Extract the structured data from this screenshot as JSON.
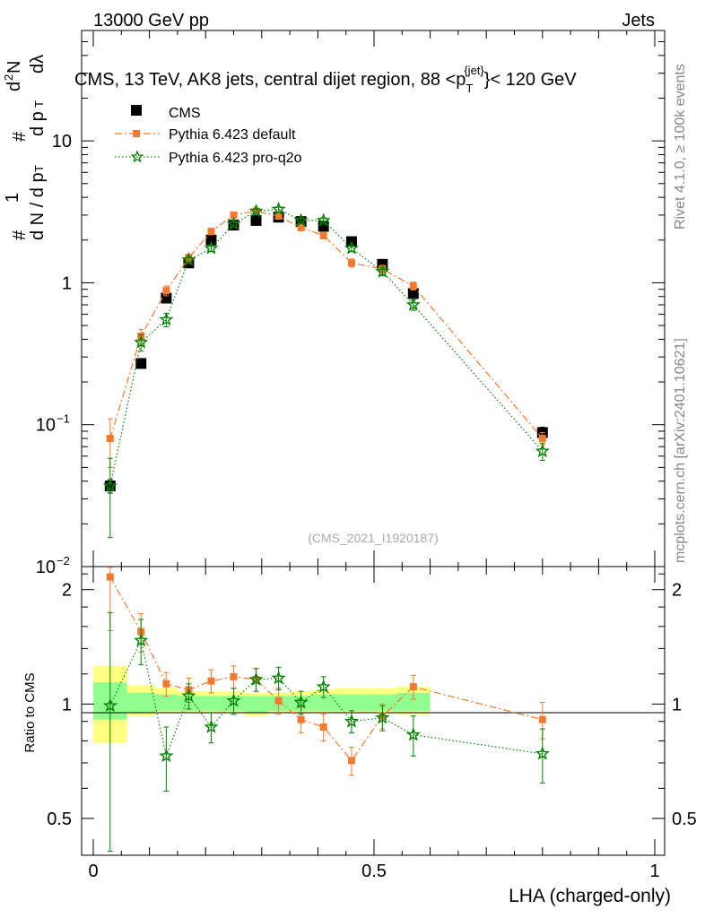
{
  "header": {
    "left": "13000 GeV pp",
    "right": "Jets"
  },
  "side_labels": {
    "rivet": "Rivet 4.1.0, ≥ 100k events",
    "mcplots": "mcplots.cern.ch [arXiv:2401.10621]"
  },
  "colors": {
    "cms": "#000000",
    "default": "#f47a30",
    "proq2o": "#008000",
    "band_outer": "#ffff80",
    "band_inner": "#90ff90"
  },
  "chart_data": {
    "type": "scatter",
    "title": "CMS, 13 TeV, AK8 jets, central dijet region, 88 <p",
    "title_sup": "{jet}",
    "title_sub": "T",
    "title_end": "}< 120 GeV",
    "watermark": "(CMS_2021_I1920187)",
    "xlabel": "LHA (charged-only)",
    "ylabel_main": "1/dN/dpT  d²N/dpT dλ",
    "ylabel_ratio": "Ratio to CMS",
    "xlim": [
      0,
      1
    ],
    "ylim_main": [
      0.01,
      60
    ],
    "ylim_ratio": [
      0.4,
      2.3
    ],
    "x_ticks": [
      0,
      0.5,
      1
    ],
    "x_tick_labels": [
      "0",
      "0.5",
      "1"
    ],
    "main_ticks": {
      "values": [
        0.01,
        0.1,
        1,
        10
      ],
      "labels": [
        {
          "base": "10",
          "exp": "−2"
        },
        {
          "base": "10",
          "exp": "−1"
        },
        {
          "base": "1",
          "exp": ""
        },
        {
          "base": "10",
          "exp": ""
        }
      ]
    },
    "ratio_ticks": {
      "values": [
        0.5,
        1,
        2
      ],
      "labels": [
        "0.5",
        "1",
        "2"
      ]
    },
    "bin_edges": [
      0,
      0.06,
      0.11,
      0.15,
      0.19,
      0.23,
      0.27,
      0.31,
      0.35,
      0.39,
      0.43,
      0.49,
      0.54,
      0.6,
      1.0
    ],
    "x_centers": [
      0.03,
      0.085,
      0.13,
      0.17,
      0.21,
      0.25,
      0.29,
      0.33,
      0.37,
      0.41,
      0.46,
      0.515,
      0.57,
      0.8
    ],
    "series": [
      {
        "name": "CMS",
        "marker": "square",
        "values": [
          0.037,
          0.27,
          0.78,
          1.38,
          2.0,
          2.55,
          2.75,
          2.9,
          2.7,
          2.5,
          1.95,
          1.35,
          0.84,
          0.088
        ],
        "errors": [
          0.004,
          0.02,
          0.05,
          0.07,
          0.08,
          0.09,
          0.09,
          0.09,
          0.09,
          0.09,
          0.08,
          0.07,
          0.05,
          0.008
        ]
      },
      {
        "name": "Pythia 6.423 default",
        "marker": "circle-square",
        "line": "dashdot",
        "values": [
          0.08,
          0.42,
          0.88,
          1.5,
          2.3,
          3.0,
          3.2,
          2.95,
          2.45,
          2.15,
          1.38,
          1.25,
          0.95,
          0.08
        ],
        "errors": [
          0.03,
          0.05,
          0.07,
          0.09,
          0.12,
          0.13,
          0.13,
          0.13,
          0.12,
          0.11,
          0.09,
          0.08,
          0.06,
          0.008
        ],
        "ratio": [
          2.16,
          1.55,
          1.13,
          1.09,
          1.15,
          1.18,
          1.16,
          1.02,
          0.91,
          0.87,
          0.71,
          0.93,
          1.11,
          0.91
        ],
        "ratio_err": [
          0.6,
          0.18,
          0.08,
          0.08,
          0.08,
          0.08,
          0.08,
          0.08,
          0.07,
          0.07,
          0.06,
          0.07,
          0.08,
          0.1
        ]
      },
      {
        "name": "Pythia 6.423 pro-q2o",
        "marker": "star",
        "line": "dotted",
        "values": [
          0.037,
          0.38,
          0.55,
          1.45,
          1.75,
          2.6,
          3.2,
          3.3,
          2.75,
          2.75,
          1.75,
          1.2,
          0.7,
          0.065
        ],
        "errors": [
          0.021,
          0.05,
          0.06,
          0.08,
          0.09,
          0.12,
          0.13,
          0.13,
          0.12,
          0.12,
          0.09,
          0.08,
          0.06,
          0.009
        ],
        "ratio": [
          0.99,
          1.47,
          0.73,
          1.05,
          0.87,
          1.02,
          1.16,
          1.17,
          1.01,
          1.11,
          0.9,
          0.92,
          0.83,
          0.74
        ],
        "ratio_err": [
          0.75,
          0.2,
          0.14,
          0.08,
          0.08,
          0.08,
          0.08,
          0.08,
          0.07,
          0.07,
          0.06,
          0.07,
          0.1,
          0.12
        ]
      }
    ],
    "band_yellow": [
      [
        0.79,
        1.26
      ],
      [
        0.93,
        1.12
      ],
      [
        0.95,
        1.1
      ],
      [
        0.95,
        1.08
      ],
      [
        0.95,
        1.08
      ],
      [
        0.95,
        1.08
      ],
      [
        0.93,
        1.07
      ],
      [
        0.95,
        1.07
      ],
      [
        0.95,
        1.08
      ],
      [
        0.95,
        1.09
      ],
      [
        0.95,
        1.1
      ],
      [
        0.95,
        1.1
      ],
      [
        0.94,
        1.11
      ]
    ],
    "band_green": [
      [
        0.91,
        1.14
      ],
      [
        0.95,
        1.07
      ],
      [
        0.96,
        1.06
      ],
      [
        0.96,
        1.05
      ],
      [
        0.96,
        1.05
      ],
      [
        0.96,
        1.05
      ],
      [
        0.95,
        1.05
      ],
      [
        0.96,
        1.05
      ],
      [
        0.96,
        1.05
      ],
      [
        0.96,
        1.06
      ],
      [
        0.96,
        1.06
      ],
      [
        0.96,
        1.06
      ],
      [
        0.96,
        1.07
      ]
    ]
  }
}
